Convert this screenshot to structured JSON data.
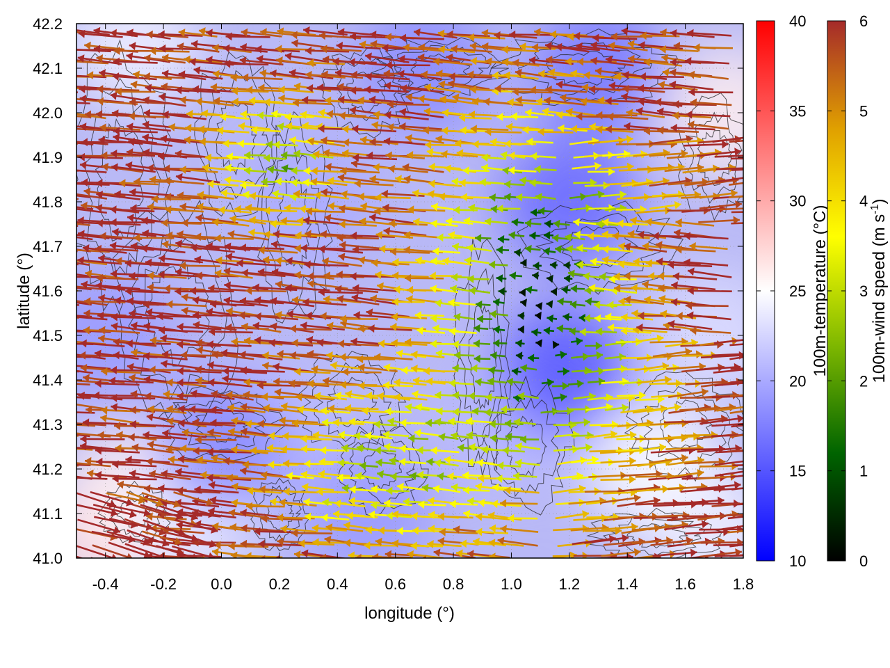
{
  "chart_data": {
    "type": "heatmap",
    "title": "",
    "xlabel": "longitude (°)",
    "ylabel": "latitude (°)",
    "xlim": [
      -0.5,
      1.8
    ],
    "ylim": [
      41.0,
      42.2
    ],
    "x_ticks": [
      "-0.4",
      "-0.2",
      "0.0",
      "0.2",
      "0.4",
      "0.6",
      "0.8",
      "1.0",
      "1.2",
      "1.4",
      "1.6",
      "1.8"
    ],
    "x_tick_values": [
      -0.4,
      -0.2,
      0.0,
      0.2,
      0.4,
      0.6,
      0.8,
      1.0,
      1.2,
      1.4,
      1.6,
      1.8
    ],
    "y_ticks": [
      "41.0",
      "41.1",
      "41.2",
      "41.3",
      "41.4",
      "41.5",
      "41.6",
      "41.7",
      "41.8",
      "41.9",
      "42.0",
      "42.1",
      "42.2"
    ],
    "y_tick_values": [
      41.0,
      41.1,
      41.2,
      41.3,
      41.4,
      41.5,
      41.6,
      41.7,
      41.8,
      41.9,
      42.0,
      42.1,
      42.2
    ],
    "grid": true,
    "temperature_colorbar": {
      "label": "100m-temperature (°C)",
      "range": [
        10,
        40
      ],
      "ticks": [
        "10",
        "15",
        "20",
        "25",
        "30",
        "35",
        "40"
      ],
      "tick_values": [
        10,
        15,
        20,
        25,
        30,
        35,
        40
      ],
      "colors": [
        "#0000ff",
        "#ffffff",
        "#ff0000"
      ]
    },
    "wind_colorbar": {
      "label": "100m-wind speed (m s",
      "label_sup": "-1",
      "label_end": ")",
      "range": [
        0,
        6
      ],
      "ticks": [
        "0",
        "1",
        "2",
        "3",
        "4",
        "5",
        "6"
      ],
      "tick_values": [
        0,
        1,
        2,
        3,
        4,
        5,
        6
      ],
      "colors": [
        "#000000",
        "#006400",
        "#7fb800",
        "#ffff00",
        "#e0a000",
        "#a52a2a"
      ]
    },
    "temperature_field": {
      "description_values_degC": "mostly 17-23 across domain; warmer (~26-28) near lower-left and right edges",
      "samples": [
        {
          "lon": -0.4,
          "lat": 41.05,
          "t": 27
        },
        {
          "lon": -0.3,
          "lat": 41.15,
          "t": 26
        },
        {
          "lon": -0.1,
          "lat": 41.1,
          "t": 24
        },
        {
          "lon": 0.2,
          "lat": 41.3,
          "t": 21
        },
        {
          "lon": 0.3,
          "lat": 41.8,
          "t": 20
        },
        {
          "lon": 0.7,
          "lat": 42.1,
          "t": 18
        },
        {
          "lon": 1.2,
          "lat": 41.8,
          "t": 16
        },
        {
          "lon": 1.3,
          "lat": 42.1,
          "t": 17
        },
        {
          "lon": 1.0,
          "lat": 41.3,
          "t": 21
        },
        {
          "lon": 1.5,
          "lat": 41.2,
          "t": 25
        },
        {
          "lon": 1.7,
          "lat": 41.05,
          "t": 24
        },
        {
          "lon": 1.7,
          "lat": 41.5,
          "t": 23
        },
        {
          "lon": 1.75,
          "lat": 42.0,
          "t": 26
        },
        {
          "lon": -0.4,
          "lat": 41.5,
          "t": 19
        },
        {
          "lon": -0.3,
          "lat": 42.15,
          "t": 24
        },
        {
          "lon": 0.0,
          "lat": 41.25,
          "t": 18
        },
        {
          "lon": 1.18,
          "lat": 41.42,
          "t": 15
        },
        {
          "lon": 0.5,
          "lat": 41.1,
          "t": 19
        }
      ]
    },
    "wind_field_summary": {
      "dominant_direction": "westward (easterly wind), arrows pointing left",
      "strong_wind_regions": [
        "western half of domain",
        "eastern edge 1.5-1.8",
        "southwest corner (pointing right)"
      ],
      "calm_region": "central area around lon 0.9-1.4, lat 41.3-41.9 with speeds 0-2 m s-1"
    }
  }
}
